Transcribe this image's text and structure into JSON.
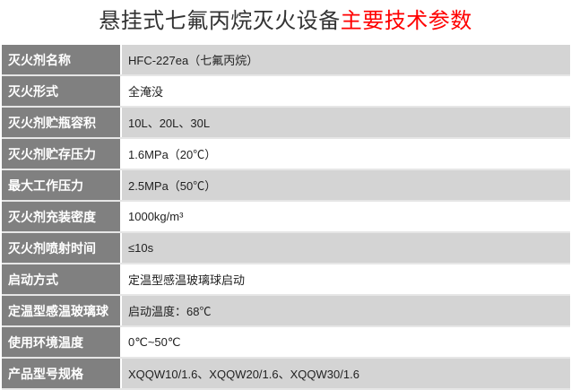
{
  "title": {
    "main": "悬挂式七氟丙烷灭火设备",
    "highlight": "主要技术参数"
  },
  "colors": {
    "highlight": "#ff0000",
    "label_bg": "#808080",
    "row_alt_bg": "#d4d4d4"
  },
  "rows": [
    {
      "label": "灭火剂名称",
      "value": "HFC-227ea（七氟丙烷）"
    },
    {
      "label": "灭火形式",
      "value": "全淹没"
    },
    {
      "label": "灭火剂贮瓶容积",
      "value": "10L、20L、30L"
    },
    {
      "label": "灭火剂贮存压力",
      "value": "1.6MPa（20℃）"
    },
    {
      "label": "最大工作压力",
      "value": "2.5MPa（50℃）"
    },
    {
      "label": "灭火剂充装密度",
      "value": "1000kg/m³"
    },
    {
      "label": "灭火剂喷射时间",
      "value": "≤10s"
    },
    {
      "label": "启动方式",
      "value": "定温型感温玻璃球启动"
    },
    {
      "label": "定温型感温玻璃球",
      "value": "启动温度：68℃"
    },
    {
      "label": "使用环境温度",
      "value": "0℃~50℃"
    },
    {
      "label": "产品型号规格",
      "value": "XQQW10/1.6、XQQW20/1.6、XQQW30/1.6"
    }
  ]
}
